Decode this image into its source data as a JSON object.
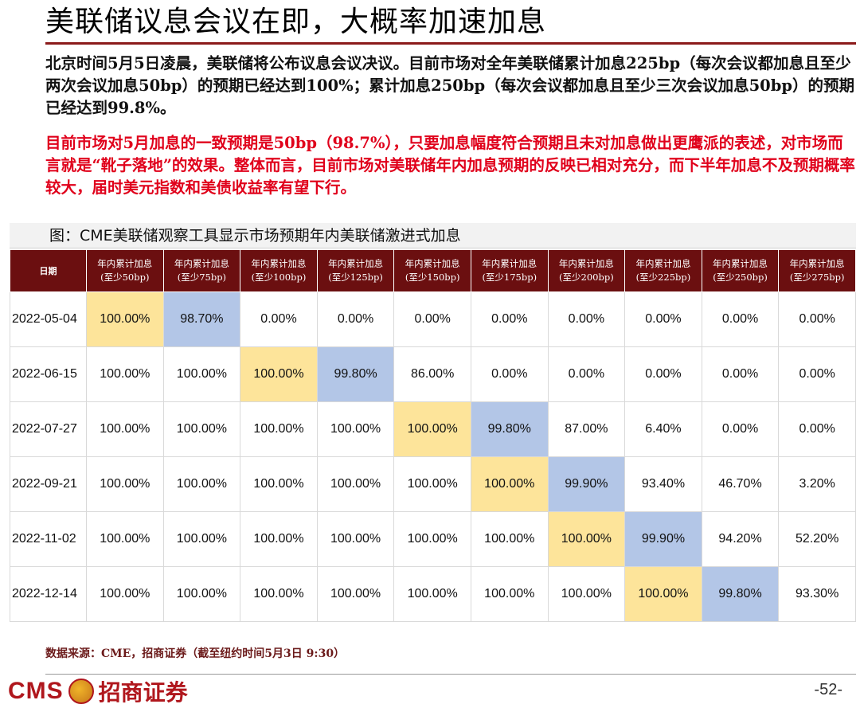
{
  "title": "美联储议息会议在即，大概率加速加息",
  "paragraph1": "北京时间5月5日凌晨，美联储将公布议息会议决议。目前市场对全年美联储累计加息225bp（每次会议都加息且至少两次会议加息50bp）的预期已经达到100%；累计加息250bp（每次会议都加息且至少三次会议加息50bp）的预期已经达到99.8%。",
  "paragraph2": "目前市场对5月加息的一致预期是50bp（98.7%），只要加息幅度符合预期且未对加息做出更鹰派的表述，对市场而言就是“靴子落地”的效果。整体而言，目前市场对美联储年内加息预期的反映已相对充分，而下半年加息不及预期概率较大，届时美元指数和美债收益率有望下行。",
  "figure": {
    "caption": "图：CME美联储观察工具显示市场预期年内美联储激进式加息",
    "date_header": "日期",
    "columns": [
      {
        "line1": "年内累计加息",
        "line2": "(至少50bp)"
      },
      {
        "line1": "年内累计加息",
        "line2": "(至少75bp)"
      },
      {
        "line1": "年内累计加息",
        "line2": "(至少100bp)"
      },
      {
        "line1": "年内累计加息",
        "line2": "(至少125bp)"
      },
      {
        "line1": "年内累计加息",
        "line2": "(至少150bp)"
      },
      {
        "line1": "年内累计加息",
        "line2": "(至少175bp)"
      },
      {
        "line1": "年内累计加息",
        "line2": "(至少200bp)"
      },
      {
        "line1": "年内累计加息",
        "line2": "(至少225bp)"
      },
      {
        "line1": "年内累计加息",
        "line2": "(至少250bp)"
      },
      {
        "line1": "年内累计加息",
        "line2": "(至少275bp)"
      }
    ],
    "rows": [
      {
        "date": "2022-05-04",
        "values": [
          "100.00%",
          "98.70%",
          "0.00%",
          "0.00%",
          "0.00%",
          "0.00%",
          "0.00%",
          "0.00%",
          "0.00%",
          "0.00%"
        ],
        "yellow": 0,
        "blue": 1
      },
      {
        "date": "2022-06-15",
        "values": [
          "100.00%",
          "100.00%",
          "100.00%",
          "99.80%",
          "86.00%",
          "0.00%",
          "0.00%",
          "0.00%",
          "0.00%",
          "0.00%"
        ],
        "yellow": 2,
        "blue": 3
      },
      {
        "date": "2022-07-27",
        "values": [
          "100.00%",
          "100.00%",
          "100.00%",
          "100.00%",
          "100.00%",
          "99.80%",
          "87.00%",
          "6.40%",
          "0.00%",
          "0.00%"
        ],
        "yellow": 4,
        "blue": 5
      },
      {
        "date": "2022-09-21",
        "values": [
          "100.00%",
          "100.00%",
          "100.00%",
          "100.00%",
          "100.00%",
          "100.00%",
          "99.90%",
          "93.40%",
          "46.70%",
          "3.20%"
        ],
        "yellow": 5,
        "blue": 6
      },
      {
        "date": "2022-11-02",
        "values": [
          "100.00%",
          "100.00%",
          "100.00%",
          "100.00%",
          "100.00%",
          "100.00%",
          "100.00%",
          "99.90%",
          "94.20%",
          "52.20%"
        ],
        "yellow": 6,
        "blue": 7
      },
      {
        "date": "2022-12-14",
        "values": [
          "100.00%",
          "100.00%",
          "100.00%",
          "100.00%",
          "100.00%",
          "100.00%",
          "100.00%",
          "100.00%",
          "99.80%",
          "93.30%"
        ],
        "yellow": 7,
        "blue": 8
      }
    ],
    "highlight_colors": {
      "yellow": "#fde49a",
      "blue": "#b3c6e7",
      "header": "#6b0f10"
    }
  },
  "source": "数据来源：CME，招商证券（截至纽约时间5月3日  9:30）",
  "footer": {
    "logo_latin": "CMS",
    "logo_emblem": "cms-emblem-icon",
    "logo_chinese": "招商证券",
    "page_number": "-52-"
  }
}
